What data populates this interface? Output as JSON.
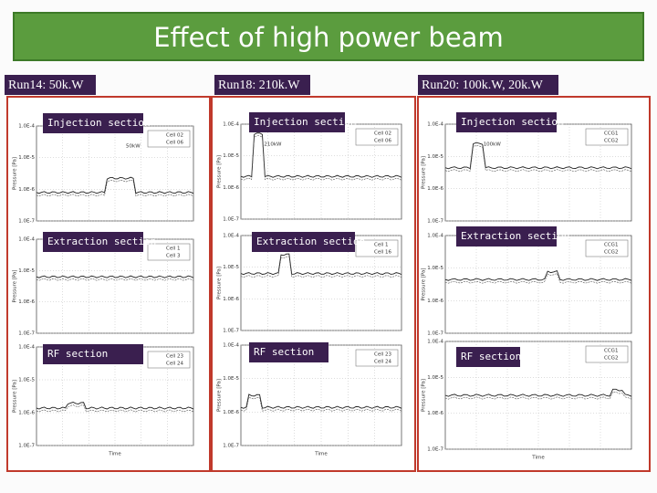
{
  "title": "Effect of high power beam",
  "axis": {
    "yticks": [
      "1.0E-4",
      "1.0E-5",
      "1.0E-6",
      "1.0E-7"
    ],
    "ylabel": "Pressure [Pa]",
    "xlabel": "Time"
  },
  "columns": [
    {
      "header": "Run14: 50k.W",
      "plots": [
        {
          "label": "Injection section",
          "legend": [
            "Cell 02",
            "Cell 06"
          ],
          "note": "50kW"
        },
        {
          "label": "Extraction section",
          "legend": [
            "Cell 1",
            "Cell 3"
          ]
        },
        {
          "label": "RF section",
          "legend": [
            "Cell 23",
            "Cell 24"
          ]
        }
      ]
    },
    {
      "header": "Run18: 210k.W",
      "plots": [
        {
          "label": "Injection section",
          "legend": [
            "Cell 02",
            "Cell 06"
          ],
          "note": "210kW"
        },
        {
          "label": "Extraction section",
          "legend": [
            "Cell 1",
            "Cell 16"
          ]
        },
        {
          "label": "RF section",
          "legend": [
            "Cell 23",
            "Cell 24"
          ]
        }
      ]
    },
    {
      "header": "Run20: 100k.W, 20k.W",
      "plots": [
        {
          "label": "Injection section",
          "legend": [
            "CCG1",
            "CCG2"
          ],
          "note": "100kW"
        },
        {
          "label": "Extraction section",
          "legend": [
            "CCG1",
            "CCG2"
          ]
        },
        {
          "label": "RF section",
          "legend": [
            "CCG1",
            "CCG2"
          ]
        }
      ]
    }
  ]
}
